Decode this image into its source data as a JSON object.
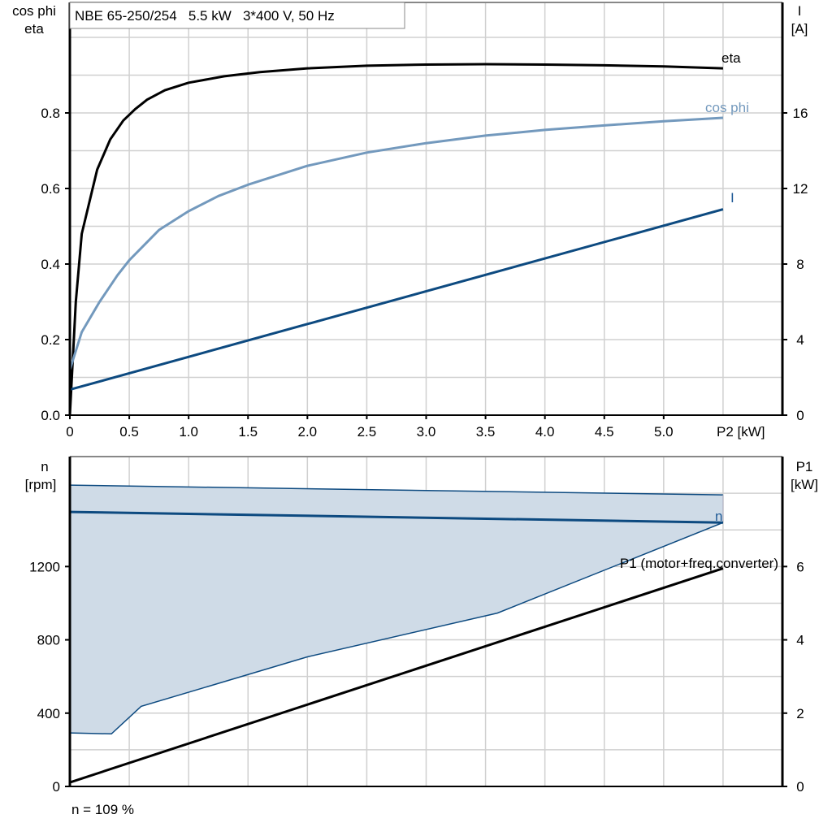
{
  "chart_data": [
    {
      "type": "line",
      "title": "NBE 65-250/254   5.5 kW   3*400 V, 50 Hz",
      "xlabel": "P2 [kW]",
      "ylabel": [
        "cos phi",
        "eta"
      ],
      "y2label": [
        "I",
        "[A]"
      ],
      "xlim": [
        0,
        6
      ],
      "ylim": [
        0,
        1.0
      ],
      "y2lim": [
        0,
        20
      ],
      "xticks": [
        "0",
        "0.5",
        "1.0",
        "1.5",
        "2.0",
        "2.5",
        "3.0",
        "3.5",
        "4.0",
        "4.5",
        "5.0"
      ],
      "yticks": [
        "0.0",
        "0.2",
        "0.4",
        "0.6",
        "0.8"
      ],
      "y2ticks": [
        "0",
        "4",
        "8",
        "12",
        "16"
      ],
      "grid": true,
      "series": [
        {
          "name": "eta",
          "axis": "left",
          "color": "#000000",
          "x": [
            0,
            0.05,
            0.1,
            0.23,
            0.34,
            0.45,
            0.55,
            0.65,
            0.8,
            1.0,
            1.3,
            1.6,
            2.0,
            2.5,
            3.0,
            3.5,
            4.0,
            4.5,
            5.0,
            5.5
          ],
          "y": [
            0,
            0.3,
            0.48,
            0.65,
            0.73,
            0.78,
            0.81,
            0.835,
            0.86,
            0.88,
            0.897,
            0.908,
            0.918,
            0.925,
            0.928,
            0.929,
            0.928,
            0.926,
            0.923,
            0.918
          ]
        },
        {
          "name": "cos phi",
          "axis": "left",
          "color": "#7399bd",
          "x": [
            0,
            0.1,
            0.25,
            0.4,
            0.5,
            0.75,
            1.0,
            1.25,
            1.5,
            2.0,
            2.5,
            3.0,
            3.5,
            4.0,
            4.5,
            5.0,
            5.5
          ],
          "y": [
            0.12,
            0.22,
            0.3,
            0.37,
            0.41,
            0.49,
            0.54,
            0.58,
            0.61,
            0.66,
            0.695,
            0.72,
            0.74,
            0.755,
            0.767,
            0.778,
            0.787
          ]
        },
        {
          "name": "I",
          "axis": "right",
          "color": "#0d4a80",
          "x": [
            0,
            5.5
          ],
          "y": [
            1.35,
            10.9
          ]
        }
      ]
    },
    {
      "type": "line",
      "xlim": [
        0,
        6
      ],
      "ylabel": [
        "n",
        "[rpm]"
      ],
      "y2label": [
        "P1",
        "[kW]"
      ],
      "ylim": [
        0,
        1800
      ],
      "y2lim": [
        0,
        9
      ],
      "yticks": [
        "0",
        "400",
        "800",
        "1200"
      ],
      "y2ticks": [
        "0",
        "2",
        "4",
        "6"
      ],
      "grid": true,
      "range_band": {
        "color": "#cfdbe7",
        "edge_color": "#0d4a80",
        "upper": {
          "x": [
            0,
            5.5
          ],
          "y": [
            1644,
            1591
          ]
        },
        "lower": {
          "x": [
            0,
            0.35,
            0.6,
            2.0,
            3.6,
            5.5
          ],
          "y": [
            292,
            287,
            437,
            707,
            946,
            1440
          ]
        }
      },
      "series": [
        {
          "name": "n",
          "axis": "left",
          "color": "#0d4a80",
          "x": [
            0,
            5.5
          ],
          "y": [
            1498,
            1440
          ]
        },
        {
          "name": "P1 (motor+freq.converter)",
          "axis": "right",
          "color": "#000000",
          "x": [
            0,
            5.5
          ],
          "y": [
            0.11,
            5.95
          ]
        }
      ],
      "annotation": "n = 109 %"
    }
  ]
}
